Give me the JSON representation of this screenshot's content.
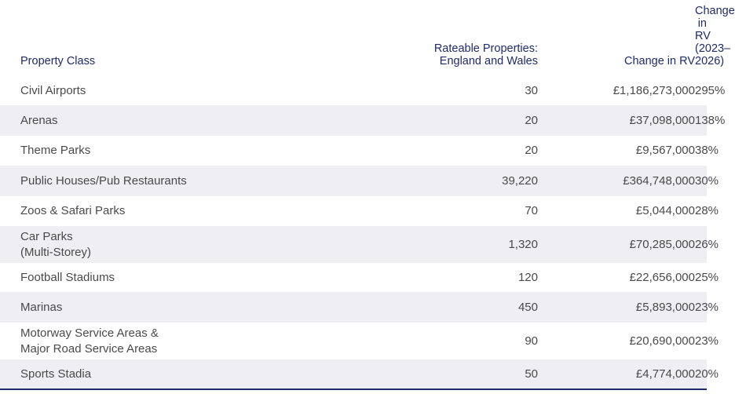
{
  "headers": {
    "property_class": "Property Class",
    "rateable": "Rateable Properties:\nEngland and Wales",
    "change_rv": "Change in RV",
    "change_pct": "Change in RV\n(2023–2026)"
  },
  "rows": [
    {
      "property_class": "Civil Airports",
      "rateable": "30",
      "change_rv": "£1,186,273,000",
      "change_pct": "295%"
    },
    {
      "property_class": "Arenas",
      "rateable": "20",
      "change_rv": "£37,098,000",
      "change_pct": "138%"
    },
    {
      "property_class": "Theme Parks",
      "rateable": "20",
      "change_rv": "£9,567,000",
      "change_pct": "38%"
    },
    {
      "property_class": "Public Houses/Pub Restaurants",
      "rateable": "39,220",
      "change_rv": "£364,748,000",
      "change_pct": "30%"
    },
    {
      "property_class": "Zoos & Safari Parks",
      "rateable": "70",
      "change_rv": "£5,044,000",
      "change_pct": "28%"
    },
    {
      "property_class": "Car Parks\n(Multi-Storey)",
      "rateable": "1,320",
      "change_rv": "£70,285,000",
      "change_pct": "26%"
    },
    {
      "property_class": "Football Stadiums",
      "rateable": "120",
      "change_rv": "£22,656,000",
      "change_pct": "25%"
    },
    {
      "property_class": "Marinas",
      "rateable": "450",
      "change_rv": "£5,893,000",
      "change_pct": "23%"
    },
    {
      "property_class": "Motorway Service Areas &\nMajor Road Service Areas",
      "rateable": "90",
      "change_rv": "£20,690,000",
      "change_pct": "23%"
    },
    {
      "property_class": "Sports Stadia",
      "rateable": "50",
      "change_rv": "£4,774,000",
      "change_pct": "20%"
    }
  ]
}
